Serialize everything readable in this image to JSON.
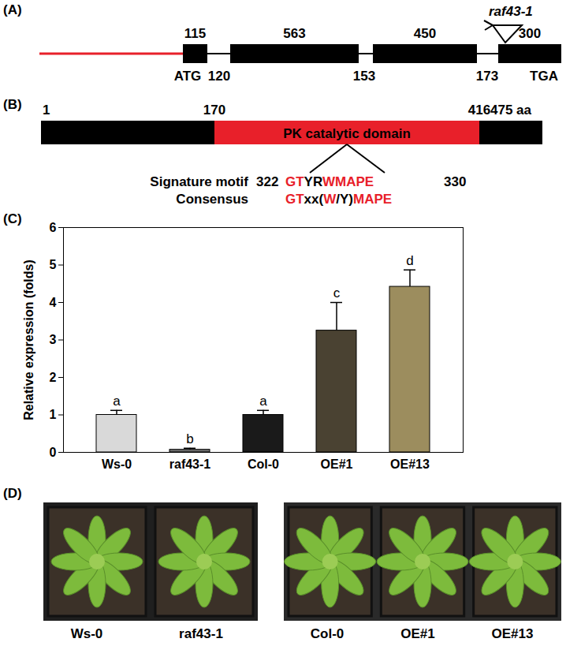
{
  "panel_labels": [
    "(A)",
    "(B)",
    "(C)",
    "(D)"
  ],
  "gene_structure": {
    "exon_lengths": [
      115,
      563,
      450,
      300
    ],
    "intron_lengths": [
      120,
      153,
      173
    ],
    "start_codon": "ATG",
    "stop_codon": "TGA",
    "insertion": "raf43-1"
  },
  "protein": {
    "positions": [
      1,
      170,
      416
    ],
    "length_label": "475 aa",
    "domain": "PK catalytic domain",
    "motif_name": "Signature motif",
    "motif_start": 322,
    "motif_end": 330,
    "motif": [
      {
        "text": "GT",
        "color": "#e8202a"
      },
      {
        "text": "YR",
        "color": "#000000"
      },
      {
        "text": "WMAPE",
        "color": "#e8202a"
      }
    ],
    "consensus_name": "Consensus",
    "consensus": [
      {
        "text": "GT",
        "color": "#e8202a"
      },
      {
        "text": "xx(",
        "color": "#000000"
      },
      {
        "text": "W",
        "color": "#e8202a"
      },
      {
        "text": "/Y)",
        "color": "#000000"
      },
      {
        "text": "MAPE",
        "color": "#e8202a"
      }
    ]
  },
  "chart_data": {
    "type": "bar",
    "categories": [
      "Ws-0",
      "raf43-1",
      "Col-0",
      "OE#1",
      "OE#13"
    ],
    "values": [
      1.0,
      0.07,
      1.0,
      3.25,
      4.42
    ],
    "errors": [
      0.12,
      0.04,
      0.12,
      0.75,
      0.45
    ],
    "letters": [
      "a",
      "b",
      "a",
      "c",
      "d"
    ],
    "colors": [
      "#d9d9d9",
      "#6e6e6e",
      "#1a1a1a",
      "#4a4232",
      "#9c8d5e"
    ],
    "ylabel": "Relative expression (folds)",
    "ylim": [
      0,
      6
    ],
    "yticks": [
      0,
      1,
      2,
      3,
      4,
      5,
      6
    ]
  },
  "photos": {
    "left": [
      "Ws-0",
      "raf43-1"
    ],
    "right": [
      "Col-0",
      "OE#1",
      "OE#13"
    ]
  }
}
